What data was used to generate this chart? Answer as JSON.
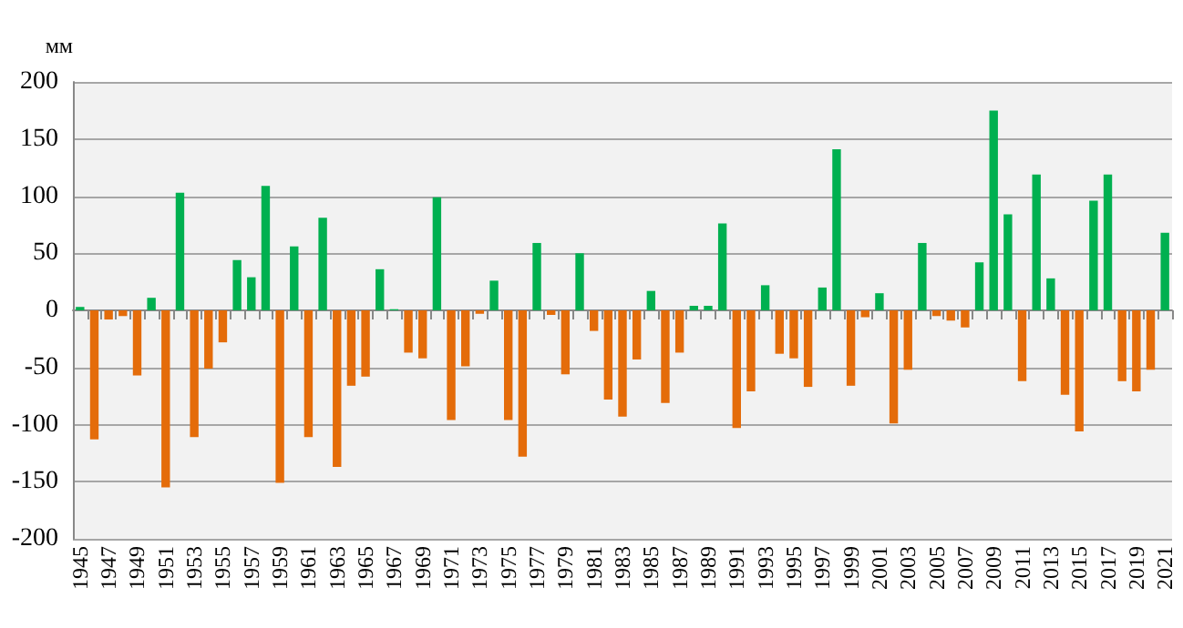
{
  "chart_data": {
    "type": "bar",
    "ylabel": "мм",
    "categories": [
      "1945",
      null,
      "1947",
      null,
      "1949",
      null,
      "1951",
      null,
      "1953",
      null,
      "1955",
      null,
      "1957",
      null,
      "1959",
      null,
      "1961",
      null,
      "1963",
      null,
      "1965",
      null,
      "1967",
      null,
      "1969",
      null,
      "1971",
      null,
      "1973",
      null,
      "1975",
      null,
      "1977",
      null,
      "1979",
      null,
      "1981",
      null,
      "1983",
      null,
      "1985",
      null,
      "1987",
      null,
      "1989",
      null,
      "1991",
      null,
      "1993",
      null,
      "1995",
      null,
      "1997",
      null,
      "1999",
      null,
      "2001",
      null,
      "2003",
      null,
      "2005",
      null,
      "2007",
      null,
      "2009",
      null,
      "2011",
      null,
      "2013",
      null,
      "2015",
      null,
      "2017",
      null,
      "2019",
      null,
      "2021"
    ],
    "values": [
      3,
      -113,
      -8,
      -5,
      -57,
      11,
      -155,
      103,
      -111,
      -51,
      -28,
      44,
      29,
      109,
      -151,
      56,
      -111,
      81,
      -137,
      -66,
      -58,
      36,
      1,
      -37,
      -42,
      99,
      -96,
      -49,
      -3,
      26,
      -96,
      -128,
      59,
      -4,
      -56,
      50,
      -18,
      -78,
      -93,
      -43,
      17,
      -81,
      -37,
      4,
      4,
      76,
      -103,
      -71,
      22,
      -38,
      -42,
      -67,
      20,
      141,
      -66,
      -6,
      15,
      -99,
      -52,
      59,
      -5,
      -9,
      -15,
      42,
      175,
      84,
      -62,
      119,
      28,
      -74,
      -106,
      96,
      119,
      -62,
      -71,
      -52,
      68
    ],
    "colors": [
      "#00b050",
      "#e46c0a",
      "#e46c0a",
      "#e46c0a",
      "#e46c0a",
      "#00b050",
      "#e46c0a",
      "#00b050",
      "#e46c0a",
      "#e46c0a",
      "#e46c0a",
      "#00b050",
      "#00b050",
      "#00b050",
      "#e46c0a",
      "#00b050",
      "#e46c0a",
      "#00b050",
      "#e46c0a",
      "#e46c0a",
      "#e46c0a",
      "#00b050",
      "#00b050",
      "#e46c0a",
      "#e46c0a",
      "#00b050",
      "#e46c0a",
      "#e46c0a",
      "#e46c0a",
      "#00b050",
      "#e46c0a",
      "#e46c0a",
      "#00b050",
      "#e46c0a",
      "#e46c0a",
      "#00b050",
      "#e46c0a",
      "#e46c0a",
      "#e46c0a",
      "#e46c0a",
      "#00b050",
      "#e46c0a",
      "#e46c0a",
      "#00b050",
      "#00b050",
      "#00b050",
      "#e46c0a",
      "#e46c0a",
      "#00b050",
      "#e46c0a",
      "#e46c0a",
      "#e46c0a",
      "#00b050",
      "#00b050",
      "#e46c0a",
      "#e46c0a",
      "#00b050",
      "#e46c0a",
      "#e46c0a",
      "#00b050",
      "#e46c0a",
      "#e46c0a",
      "#e46c0a",
      "#00b050",
      "#00b050",
      "#00b050",
      "#e46c0a",
      "#00b050",
      "#00b050",
      "#e46c0a",
      "#e46c0a",
      "#00b050",
      "#00b050",
      "#e46c0a",
      "#e46c0a",
      "#e46c0a",
      "#00b050"
    ],
    "ylim": [
      -200,
      200
    ],
    "yticks": [
      -200,
      -150,
      -100,
      -50,
      0,
      50,
      100,
      150,
      200
    ],
    "grid": "y"
  }
}
